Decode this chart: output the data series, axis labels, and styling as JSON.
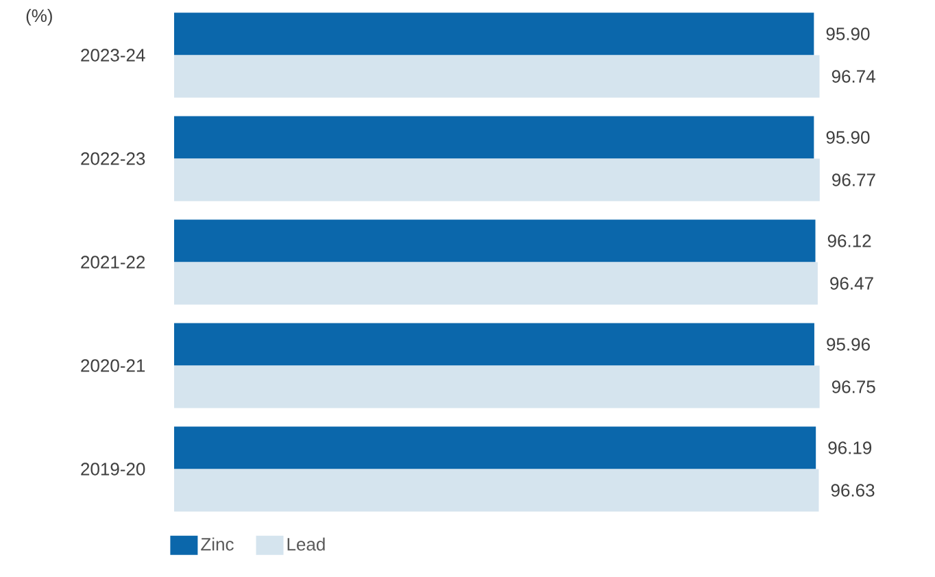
{
  "chart_data": {
    "type": "bar",
    "orientation": "horizontal",
    "ylabel": "(%)",
    "categories": [
      "2023-24",
      "2022-23",
      "2021-22",
      "2020-21",
      "2019-20"
    ],
    "series": [
      {
        "name": "Zinc",
        "color": "#0b67ab",
        "values": [
          95.9,
          95.9,
          96.12,
          95.96,
          96.19
        ],
        "value_labels": [
          "95.90",
          "95.90",
          "96.12",
          "95.96",
          "96.19"
        ]
      },
      {
        "name": "Lead",
        "color": "#d5e4ee",
        "values": [
          96.74,
          96.77,
          96.47,
          96.75,
          96.63
        ],
        "value_labels": [
          "96.74",
          "96.77",
          "96.47",
          "96.75",
          "96.63"
        ]
      }
    ],
    "legend": "bottom left"
  }
}
